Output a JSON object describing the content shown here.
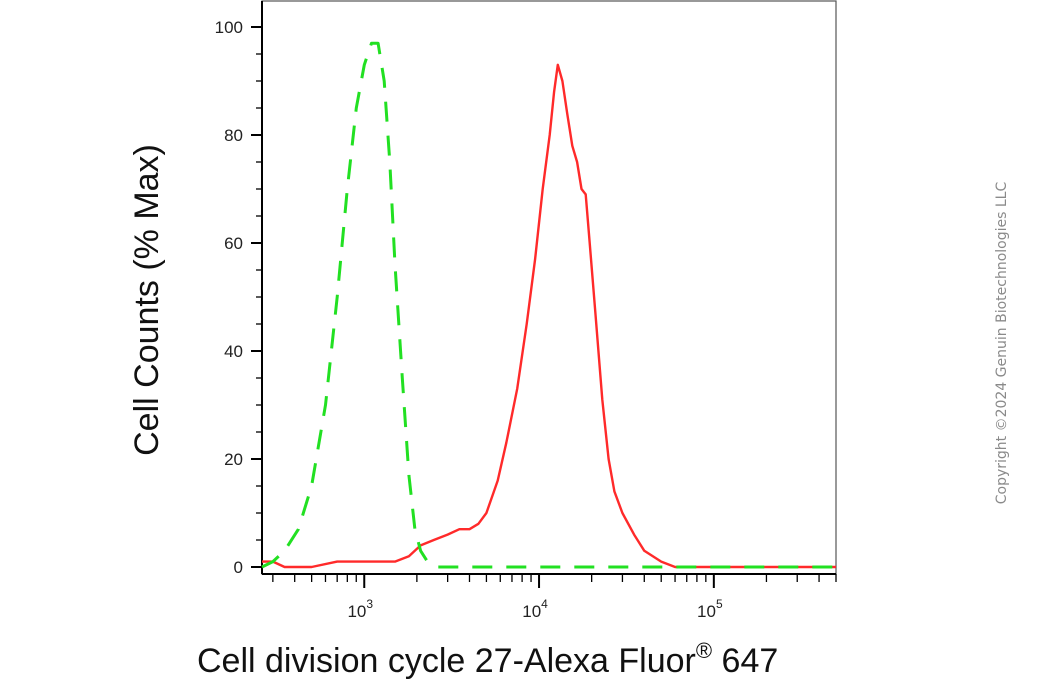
{
  "chart_data": {
    "type": "line",
    "xlabel_main": "Cell division cycle 27-Alexa Fluor",
    "xlabel_sup": "®",
    "xlabel_tail": " 647",
    "ylabel": "Cell Counts (% Max)",
    "xscale": "log",
    "xlim": [
      260,
      500000
    ],
    "ylim": [
      0,
      100
    ],
    "y_ticks": [
      0,
      20,
      40,
      60,
      80,
      100
    ],
    "y_tick_labels": [
      "0",
      "20",
      "40",
      "60",
      "80",
      "100"
    ],
    "x_ticks": [
      1000,
      10000,
      100000
    ],
    "x_tick_labels": [
      {
        "base": "10",
        "exp": "3"
      },
      {
        "base": "10",
        "exp": "4"
      },
      {
        "base": "10",
        "exp": "5"
      }
    ],
    "grid": false,
    "series": [
      {
        "color": "#ff2a2a",
        "style": "solid",
        "x": [
          260,
          300,
          350,
          420,
          500,
          700,
          1000,
          1500,
          1800,
          2100,
          2500,
          3000,
          3500,
          4000,
          4500,
          5000,
          5800,
          6500,
          7500,
          8500,
          9500,
          10500,
          11500,
          12200,
          12800,
          13600,
          14500,
          15500,
          16500,
          17500,
          18500,
          19500,
          21000,
          23000,
          25000,
          27000,
          30000,
          35000,
          40000,
          50000,
          60000,
          80000,
          100000,
          200000,
          500000
        ],
        "y": [
          1,
          1,
          0,
          0,
          0,
          1,
          1,
          1,
          2,
          4,
          5,
          6,
          7,
          7,
          8,
          10,
          16,
          23,
          33,
          45,
          57,
          70,
          80,
          88,
          93,
          90,
          84,
          78,
          75,
          70,
          69,
          60,
          47,
          31,
          20,
          14,
          10,
          6,
          3,
          1,
          0,
          0,
          0,
          0,
          0
        ]
      },
      {
        "color": "#22e022",
        "style": "dashed",
        "x": [
          260,
          300,
          350,
          420,
          500,
          600,
          700,
          800,
          900,
          1000,
          1100,
          1200,
          1300,
          1400,
          1500,
          1650,
          1800,
          1950,
          2100,
          2300,
          2600,
          3000,
          4000,
          6000,
          10000,
          100000,
          500000
        ],
        "y": [
          0,
          1,
          3,
          7,
          15,
          30,
          50,
          70,
          85,
          93,
          97,
          97,
          90,
          75,
          56,
          35,
          17,
          7,
          3,
          1,
          0,
          0,
          0,
          0,
          0,
          0,
          0
        ]
      }
    ]
  },
  "copyright": "Copyright ©2024 Genuin Biotechnologies LLC"
}
